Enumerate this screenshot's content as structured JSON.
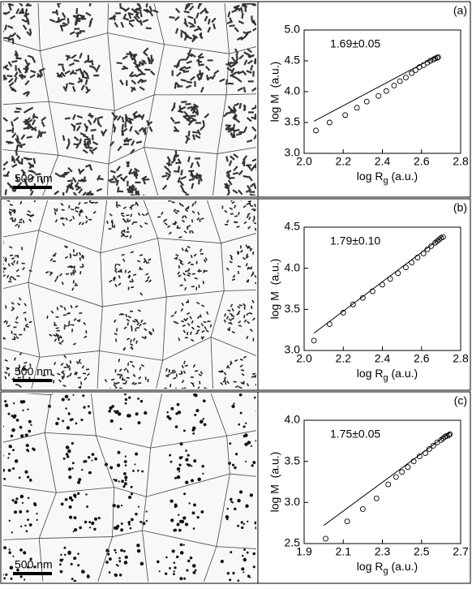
{
  "chart_data": [
    {
      "type": "scatter",
      "panel_label": "(a)",
      "annotation": "1.69±0.05",
      "image_scale_bar": "500 nm",
      "ylabel": "log M  (a.u.)",
      "xlabel": {
        "text": "log R",
        "subscript": "g",
        "unit": " (a.u.)"
      },
      "xlim": [
        2.0,
        2.8
      ],
      "xticks": [
        {
          "value": 2.0,
          "label": "2.0"
        },
        2.2,
        2.4,
        2.6,
        2.8
      ],
      "ylim": [
        3.0,
        5.0
      ],
      "yticks": [
        {
          "value": 3.0,
          "label": "3.0"
        },
        3.5,
        {
          "value": 4.0,
          "label": "4.0"
        },
        4.5,
        {
          "value": 5.0,
          "label": "5.0"
        }
      ],
      "x": [
        2.06,
        2.13,
        2.21,
        2.27,
        2.32,
        2.38,
        2.42,
        2.46,
        2.49,
        2.52,
        2.55,
        2.57,
        2.59,
        2.61,
        2.63,
        2.645,
        2.66,
        2.67,
        2.68,
        2.685
      ],
      "values": [
        3.37,
        3.5,
        3.62,
        3.74,
        3.84,
        3.93,
        4.01,
        4.1,
        4.17,
        4.23,
        4.3,
        4.35,
        4.4,
        4.43,
        4.47,
        4.5,
        4.52,
        4.54,
        4.55,
        4.56
      ],
      "fit": {
        "x": [
          2.05,
          2.68
        ],
        "values": [
          3.52,
          4.58
        ]
      }
    },
    {
      "type": "scatter",
      "panel_label": "(b)",
      "annotation": "1.79±0.10",
      "image_scale_bar": "500 nm",
      "ylabel": "log M  (a.u.)",
      "xlabel": {
        "text": "log R",
        "subscript": "g",
        "unit": " (a.u.)"
      },
      "xlim": [
        2.0,
        2.8
      ],
      "xticks": [
        {
          "value": 2.0,
          "label": "2.0"
        },
        2.2,
        2.4,
        2.6,
        2.8
      ],
      "ylim": [
        3.0,
        4.5
      ],
      "yticks": [
        {
          "value": 3.0,
          "label": "3.0"
        },
        3.5,
        {
          "value": 4.0,
          "label": "4.0"
        },
        4.5
      ],
      "x": [
        2.05,
        2.13,
        2.2,
        2.25,
        2.3,
        2.35,
        2.4,
        2.44,
        2.48,
        2.52,
        2.55,
        2.58,
        2.61,
        2.63,
        2.65,
        2.67,
        2.68,
        2.69,
        2.7,
        2.71
      ],
      "values": [
        3.12,
        3.32,
        3.46,
        3.56,
        3.64,
        3.72,
        3.8,
        3.87,
        3.94,
        4.01,
        4.07,
        4.13,
        4.18,
        4.23,
        4.27,
        4.31,
        4.33,
        4.35,
        4.37,
        4.38
      ],
      "fit": {
        "x": [
          2.05,
          2.71
        ],
        "values": [
          3.21,
          4.39
        ]
      }
    },
    {
      "type": "scatter",
      "panel_label": "(c)",
      "annotation": "1.75±0.05",
      "image_scale_bar": "500 nm",
      "ylabel": "log M  (a.u.)",
      "xlabel": {
        "text": "log R",
        "subscript": "g",
        "unit": " (a.u.)"
      },
      "xlim": [
        1.9,
        2.7
      ],
      "xticks": [
        1.9,
        2.1,
        2.3,
        2.5,
        2.7
      ],
      "ylim": [
        2.5,
        4.0
      ],
      "yticks": [
        2.5,
        {
          "value": 3.0,
          "label": "3.0"
        },
        3.5,
        {
          "value": 4.0,
          "label": "4.0"
        }
      ],
      "x": [
        2.01,
        2.12,
        2.2,
        2.27,
        2.33,
        2.37,
        2.4,
        2.43,
        2.46,
        2.49,
        2.52,
        2.54,
        2.56,
        2.58,
        2.6,
        2.61,
        2.62,
        2.63,
        2.64,
        2.645
      ],
      "values": [
        2.56,
        2.77,
        2.92,
        3.05,
        3.22,
        3.31,
        3.37,
        3.43,
        3.5,
        3.56,
        3.6,
        3.65,
        3.69,
        3.73,
        3.76,
        3.78,
        3.8,
        3.81,
        3.82,
        3.83
      ],
      "fit": {
        "x": [
          2.0,
          2.645
        ],
        "values": [
          2.72,
          3.85
        ]
      }
    }
  ]
}
